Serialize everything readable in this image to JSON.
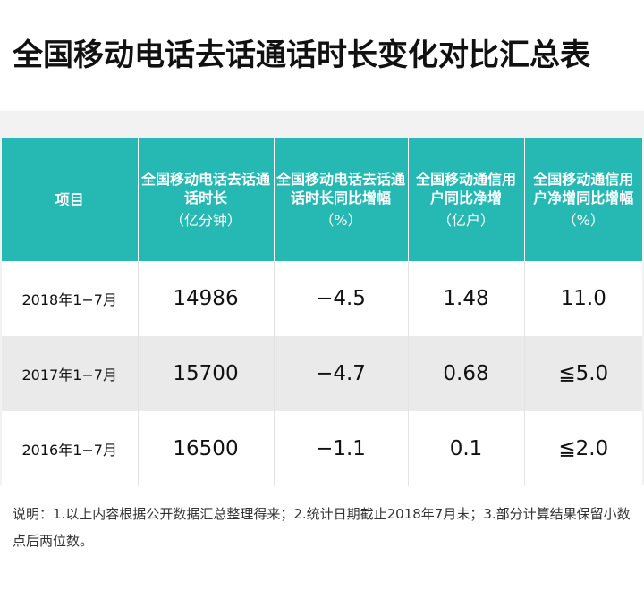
{
  "title": "全国移动电话去话通话时长变化对比汇总表",
  "table": {
    "headers": [
      {
        "label": "项目",
        "unit": ""
      },
      {
        "label": "全国移动电话去话通话时长",
        "unit": "（亿分钟）"
      },
      {
        "label": "全国移动电话去话通话时长同比增幅",
        "unit": "（%）"
      },
      {
        "label": "全国移动通信用户同比净增",
        "unit": "（亿户）"
      },
      {
        "label": "全国移动通信用户净增同比增幅",
        "unit": "（%）"
      }
    ],
    "rows": [
      [
        "2018年1−7月",
        "14986",
        "−4.5",
        "1.48",
        "11.0"
      ],
      [
        "2017年1−7月",
        "15700",
        "−4.7",
        "0.68",
        "≦5.0"
      ],
      [
        "2016年1−7月",
        "16500",
        "−1.1",
        "0.1",
        "≦2.0"
      ]
    ]
  },
  "note": "说明：1.以上内容根据公开数据汇总整理得来；2.统计日期截止2018年7月末；3.部分计算结果保留小数点后两位数。",
  "colors": {
    "header_bg": "#26b8b3",
    "header_text": "#ffffff",
    "row_alt_bg": "#eaeaea"
  }
}
